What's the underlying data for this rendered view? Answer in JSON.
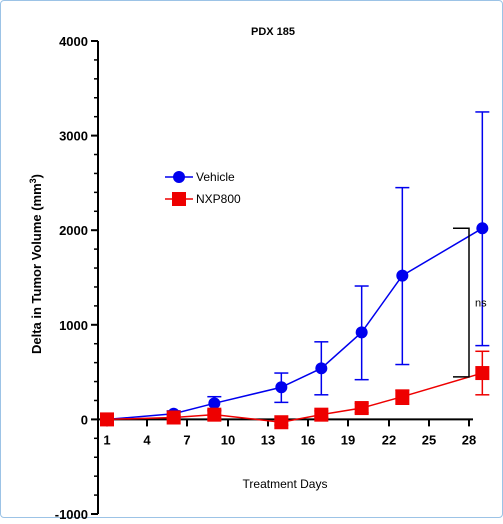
{
  "chart_data": {
    "type": "line",
    "title": "PDX 185",
    "xlabel": "Treatment Days",
    "ylabel": "Delta in Tumor Volume (mm",
    "ylabel_sup": "3",
    "ylabel_end": ")",
    "xlim": [
      0,
      31
    ],
    "ylim": [
      -1000,
      4000
    ],
    "x_ticks": [
      1,
      4,
      7,
      10,
      13,
      16,
      19,
      22,
      25,
      28
    ],
    "x_tick_labels": [
      "1",
      "4",
      "7",
      "10",
      "13",
      "16",
      "19",
      "22",
      "25",
      "28"
    ],
    "y_ticks": [
      -1000,
      0,
      1000,
      2000,
      3000,
      4000
    ],
    "y_tick_labels": [
      "-1000",
      "0",
      "1000",
      "2000",
      "3000",
      "4000"
    ],
    "legend_position": "upper-left",
    "series": [
      {
        "name": "Vehicle",
        "color": "#0000ee",
        "marker": "circle",
        "x": [
          1,
          6,
          9,
          14,
          17,
          20,
          23,
          29
        ],
        "y": [
          0,
          60,
          170,
          340,
          540,
          920,
          1520,
          2020
        ],
        "err_low": [
          0,
          20,
          90,
          180,
          260,
          420,
          580,
          780
        ],
        "err_high": [
          0,
          90,
          240,
          490,
          820,
          1410,
          2450,
          3250
        ]
      },
      {
        "name": "NXP800",
        "color": "#ee0000",
        "marker": "square",
        "x": [
          1,
          6,
          9,
          14,
          17,
          20,
          23,
          29
        ],
        "y": [
          0,
          20,
          50,
          -30,
          50,
          120,
          240,
          490
        ],
        "err_low": [
          0,
          0,
          0,
          -60,
          20,
          70,
          160,
          260
        ],
        "err_high": [
          0,
          40,
          100,
          0,
          90,
          170,
          310,
          720
        ]
      }
    ],
    "annotation": {
      "text": "ns",
      "from_y": 2020,
      "to_y": 450
    }
  }
}
